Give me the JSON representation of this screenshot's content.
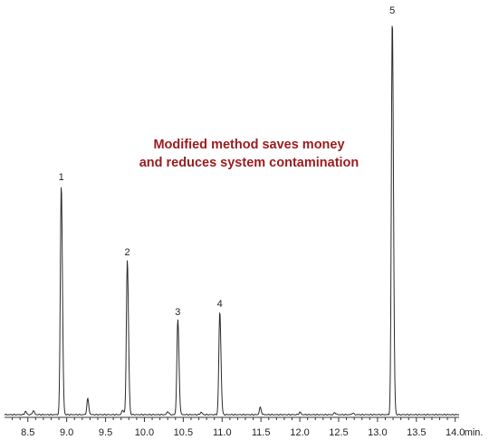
{
  "chart_data": {
    "type": "line",
    "x_unit": "min.",
    "xlim": [
      8.2,
      14.05
    ],
    "x_ticks": [
      "8.5",
      "9.0",
      "9.5",
      "10.0",
      "10.5",
      "11.0",
      "11.5",
      "12.0",
      "12.5",
      "13.0",
      "13.5",
      "14.0"
    ],
    "annotation": [
      "Modified method saves money",
      "and reduces system contamination"
    ],
    "peaks": [
      {
        "label": "1",
        "x": 8.93,
        "height": 0.58
      },
      {
        "label": "2",
        "x": 9.78,
        "height": 0.39
      },
      {
        "label": "3",
        "x": 10.43,
        "height": 0.24
      },
      {
        "label": "4",
        "x": 10.97,
        "height": 0.26
      },
      {
        "label": "5",
        "x": 13.19,
        "height": 1.0
      }
    ],
    "minor_peaks": [
      {
        "x": 9.27,
        "height": 0.04
      },
      {
        "x": 8.47,
        "height": 0.008
      },
      {
        "x": 8.57,
        "height": 0.01
      },
      {
        "x": 9.72,
        "height": 0.012
      },
      {
        "x": 10.3,
        "height": 0.008
      },
      {
        "x": 10.73,
        "height": 0.006
      },
      {
        "x": 11.49,
        "height": 0.018
      },
      {
        "x": 12.0,
        "height": 0.006
      },
      {
        "x": 12.45,
        "height": 0.005
      },
      {
        "x": 12.68,
        "height": 0.004
      }
    ],
    "grid": false,
    "legend": "none"
  }
}
